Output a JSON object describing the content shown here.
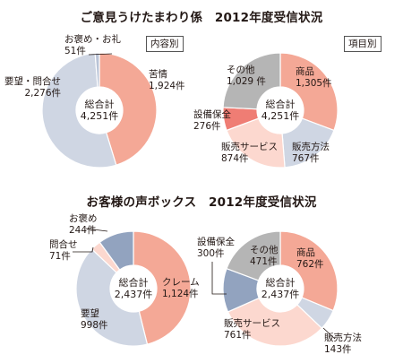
{
  "titles": {
    "top": "ご意見うけたまわり係　2012年度受信状況",
    "bottom": "お客様の声ボックス　2012年度受信状況"
  },
  "tags": {
    "content": "内容別",
    "item": "項目別"
  },
  "chart_data": [
    {
      "type": "pie",
      "subtitle": "内容別",
      "total_label": "総合計",
      "total_value": "4,251件",
      "slices": [
        {
          "name": "苦情",
          "value": 1924,
          "value_text": "1,924件",
          "color": "#f4a896"
        },
        {
          "name": "要望・問合せ",
          "value": 2276,
          "value_text": "2,276件",
          "color": "#cfd6e3"
        },
        {
          "name": "お褒め・お礼",
          "value": 51,
          "value_text": "51件",
          "color": "#b9c3d6"
        }
      ]
    },
    {
      "type": "pie",
      "subtitle": "項目別",
      "total_label": "総合計",
      "total_value": "4,251件",
      "slices": [
        {
          "name": "商品",
          "value": 1305,
          "value_text": "1,305件",
          "color": "#f4a896"
        },
        {
          "name": "販売方法",
          "value": 767,
          "value_text": "767件",
          "color": "#cfd6e3"
        },
        {
          "name": "販売サービス",
          "value": 874,
          "value_text": "874件",
          "color": "#fcd8cf"
        },
        {
          "name": "設備保全",
          "value": 276,
          "value_text": "276件",
          "color": "#ef7d74"
        },
        {
          "name": "その他",
          "value": 1029,
          "value_text": "1,029 件",
          "color": "#b5b5b5"
        }
      ]
    },
    {
      "type": "pie",
      "total_label": "総合計",
      "total_value": "2,437件",
      "slices": [
        {
          "name": "クレーム",
          "value": 1124,
          "value_text": "1,124件",
          "color": "#f4a896"
        },
        {
          "name": "要望",
          "value": 998,
          "value_text": "998件",
          "color": "#cfd6e3"
        },
        {
          "name": "問合せ",
          "value": 71,
          "value_text": "71件",
          "color": "#fcd8cf"
        },
        {
          "name": "お褒め",
          "value": 244,
          "value_text": "244件",
          "color": "#92a3bf"
        }
      ]
    },
    {
      "type": "pie",
      "total_label": "総合計",
      "total_value": "2,437件",
      "slices": [
        {
          "name": "商品",
          "value": 762,
          "value_text": "762件",
          "color": "#f4a896"
        },
        {
          "name": "販売方法",
          "value": 143,
          "value_text": "143件",
          "color": "#cfd6e3"
        },
        {
          "name": "販売サービス",
          "value": 761,
          "value_text": "761件",
          "color": "#fcd8cf"
        },
        {
          "name": "設備保全",
          "value": 300,
          "value_text": "300件",
          "color": "#92a3bf"
        },
        {
          "name": "その他",
          "value": 471,
          "value_text": "471件",
          "color": "#b5b5b5"
        }
      ]
    }
  ]
}
